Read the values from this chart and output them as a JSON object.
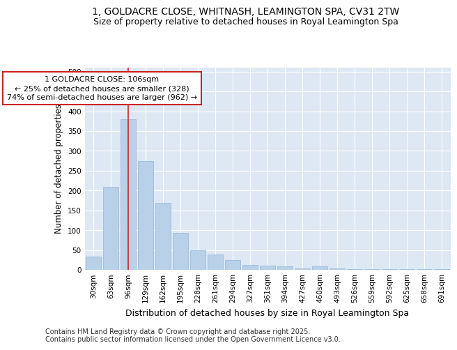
{
  "title": "1, GOLDACRE CLOSE, WHITNASH, LEAMINGTON SPA, CV31 2TW",
  "subtitle": "Size of property relative to detached houses in Royal Leamington Spa",
  "xlabel": "Distribution of detached houses by size in Royal Leamington Spa",
  "ylabel": "Number of detached properties",
  "categories": [
    "30sqm",
    "63sqm",
    "96sqm",
    "129sqm",
    "162sqm",
    "195sqm",
    "228sqm",
    "261sqm",
    "294sqm",
    "327sqm",
    "361sqm",
    "394sqm",
    "427sqm",
    "460sqm",
    "493sqm",
    "526sqm",
    "559sqm",
    "592sqm",
    "625sqm",
    "658sqm",
    "691sqm"
  ],
  "values": [
    33,
    210,
    380,
    275,
    168,
    93,
    50,
    38,
    24,
    13,
    10,
    9,
    4,
    8,
    4,
    2,
    2,
    2,
    1,
    2,
    1
  ],
  "bar_color": "#b8d0e8",
  "bar_edge_color": "#93b8d8",
  "vline_x_index": 2,
  "vline_color": "#cc2222",
  "annotation_text": "1 GOLDACRE CLOSE: 106sqm\n← 25% of detached houses are smaller (328)\n74% of semi-detached houses are larger (962) →",
  "annotation_box_facecolor": "#ffffff",
  "annotation_box_edgecolor": "#cc2222",
  "ylim": [
    0,
    510
  ],
  "yticks": [
    0,
    50,
    100,
    150,
    200,
    250,
    300,
    350,
    400,
    450,
    500
  ],
  "fig_bg_color": "#ffffff",
  "plot_bg_color": "#dde8f4",
  "grid_color": "#ffffff",
  "title_fontsize": 10,
  "subtitle_fontsize": 9,
  "xlabel_fontsize": 9,
  "ylabel_fontsize": 8.5,
  "tick_fontsize": 7.5,
  "footer_fontsize": 7,
  "ann_fontsize": 8,
  "footer": "Contains HM Land Registry data © Crown copyright and database right 2025.\nContains public sector information licensed under the Open Government Licence v3.0."
}
